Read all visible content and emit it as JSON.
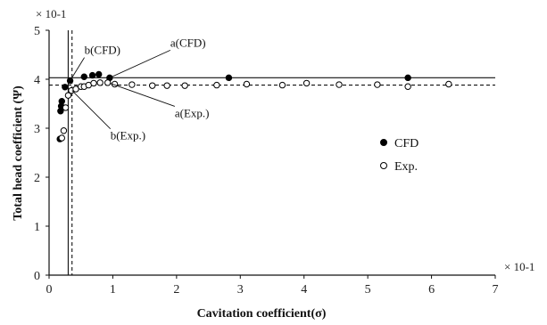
{
  "chart_data": {
    "type": "scatter",
    "title": "",
    "xlabel": "Cavitation coefficient(σ)",
    "ylabel": "Total head coefficient (Ψ)",
    "x_multiplier": "× 10-1",
    "y_multiplier": "× 10-1",
    "xlim": [
      0,
      7
    ],
    "ylim": [
      0,
      5
    ],
    "x_ticks": [
      "0",
      "1",
      "2",
      "3",
      "4",
      "5",
      "6",
      "7"
    ],
    "y_ticks": [
      "0",
      "1",
      "2",
      "3",
      "4",
      "5"
    ],
    "legend_position": "right",
    "series": [
      {
        "name": "CFD",
        "marker": "filled-circle",
        "color": "#000000",
        "points": [
          [
            0.17,
            2.78
          ],
          [
            0.18,
            3.35
          ],
          [
            0.19,
            3.45
          ],
          [
            0.2,
            3.55
          ],
          [
            0.25,
            3.84
          ],
          [
            0.33,
            3.97
          ],
          [
            0.55,
            4.05
          ],
          [
            0.68,
            4.08
          ],
          [
            0.78,
            4.1
          ],
          [
            0.95,
            4.03
          ],
          [
            2.82,
            4.03
          ],
          [
            5.63,
            4.03
          ]
        ]
      },
      {
        "name": "Exp.",
        "marker": "open-circle",
        "color": "#000000",
        "points": [
          [
            0.2,
            2.8
          ],
          [
            0.23,
            2.95
          ],
          [
            0.26,
            3.42
          ],
          [
            0.3,
            3.67
          ],
          [
            0.35,
            3.77
          ],
          [
            0.42,
            3.8
          ],
          [
            0.5,
            3.85
          ],
          [
            0.55,
            3.85
          ],
          [
            0.62,
            3.88
          ],
          [
            0.7,
            3.92
          ],
          [
            0.8,
            3.93
          ],
          [
            0.92,
            3.93
          ],
          [
            1.03,
            3.9
          ],
          [
            1.3,
            3.89
          ],
          [
            1.62,
            3.87
          ],
          [
            1.85,
            3.87
          ],
          [
            2.13,
            3.87
          ],
          [
            2.63,
            3.88
          ],
          [
            3.1,
            3.9
          ],
          [
            3.66,
            3.88
          ],
          [
            4.04,
            3.92
          ],
          [
            4.55,
            3.89
          ],
          [
            5.15,
            3.89
          ],
          [
            5.63,
            3.85
          ],
          [
            6.27,
            3.9
          ]
        ]
      }
    ],
    "reference_lines": [
      {
        "orientation": "horizontal",
        "value": 4.03,
        "style": "solid"
      },
      {
        "orientation": "horizontal",
        "value": 3.88,
        "style": "dashed"
      },
      {
        "orientation": "vertical",
        "value": 0.3,
        "style": "solid"
      },
      {
        "orientation": "vertical",
        "value": 0.36,
        "style": "dashed"
      }
    ],
    "annotations": [
      {
        "text": "b(CFD)",
        "point": [
          0.33,
          3.97
        ]
      },
      {
        "text": "a(CFD)",
        "point": [
          0.95,
          4.03
        ]
      },
      {
        "text": "a(Exp.)",
        "point": [
          0.95,
          3.92
        ]
      },
      {
        "text": "b(Exp.)",
        "point": [
          0.36,
          3.77
        ]
      }
    ]
  }
}
